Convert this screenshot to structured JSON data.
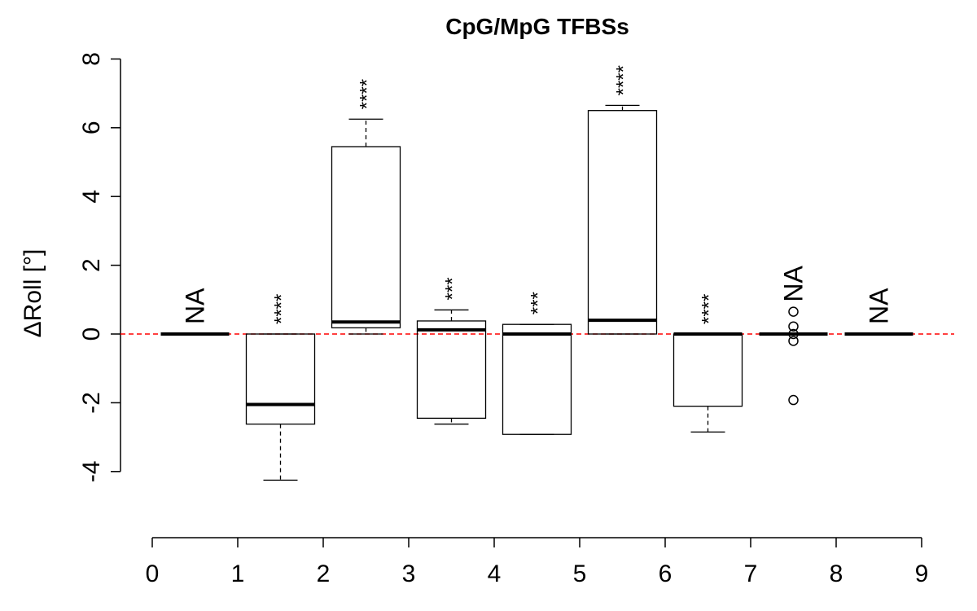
{
  "chart_data": {
    "type": "boxplot",
    "title": "CpG/MpG TFBSs",
    "ylabel": "ΔRoll [°]",
    "xlabel": "",
    "ylim": [
      -4,
      8
    ],
    "yticks": [
      -4,
      -2,
      0,
      2,
      4,
      6,
      8
    ],
    "xticks": [
      0,
      1,
      2,
      3,
      4,
      5,
      6,
      7,
      8,
      9
    ],
    "reference_line": {
      "y": 0,
      "color": "#ff0000",
      "style": "dashed"
    },
    "boxes": [
      {
        "center": 0.5,
        "whisker_low": 0,
        "q1": 0,
        "median": 0,
        "q3": 0,
        "whisker_high": 0,
        "outliers": [],
        "annotation": "NA"
      },
      {
        "center": 1.5,
        "whisker_low": -4.25,
        "q1": -2.62,
        "median": -2.05,
        "q3": 0,
        "whisker_high": 0,
        "outliers": [],
        "annotation": "****"
      },
      {
        "center": 2.5,
        "whisker_low": 0,
        "q1": 0.18,
        "median": 0.35,
        "q3": 5.45,
        "whisker_high": 6.25,
        "outliers": [],
        "annotation": "****"
      },
      {
        "center": 3.5,
        "whisker_low": -2.62,
        "q1": -2.45,
        "median": 0.12,
        "q3": 0.38,
        "whisker_high": 0.7,
        "outliers": [],
        "annotation": "***"
      },
      {
        "center": 4.5,
        "whisker_low": -2.92,
        "q1": -2.92,
        "median": 0,
        "q3": 0.28,
        "whisker_high": 0.28,
        "outliers": [],
        "annotation": "***"
      },
      {
        "center": 5.5,
        "whisker_low": 0,
        "q1": 0,
        "median": 0.4,
        "q3": 6.5,
        "whisker_high": 6.65,
        "outliers": [],
        "annotation": "****"
      },
      {
        "center": 6.5,
        "whisker_low": -2.85,
        "q1": -2.1,
        "median": 0,
        "q3": 0,
        "whisker_high": 0,
        "outliers": [],
        "annotation": "****"
      },
      {
        "center": 7.5,
        "whisker_low": 0,
        "q1": 0,
        "median": 0,
        "q3": 0,
        "whisker_high": 0,
        "outliers": [
          0.65,
          0.22,
          0.0,
          -0.2,
          -1.92
        ],
        "annotation": "NA"
      },
      {
        "center": 8.5,
        "whisker_low": 0,
        "q1": 0,
        "median": 0,
        "q3": 0,
        "whisker_high": 0,
        "outliers": [],
        "annotation": "NA"
      }
    ]
  }
}
